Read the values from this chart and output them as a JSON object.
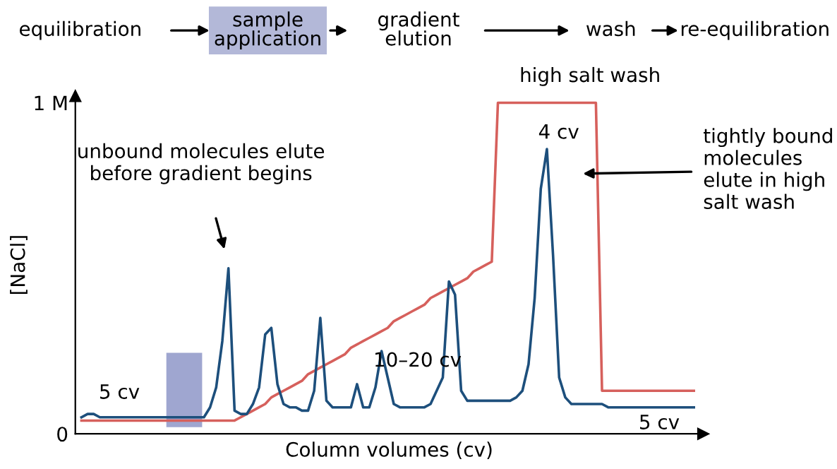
{
  "chart_data": {
    "type": "line",
    "xlabel": "Column volumes (cv)",
    "ylabel": "[NaCl]",
    "categories": [
      null,
      null,
      null,
      null,
      null,
      null,
      null,
      null,
      null,
      null,
      null,
      null,
      null,
      null,
      null,
      null,
      null,
      null,
      null,
      null,
      null,
      null,
      null,
      null,
      null,
      null,
      null,
      null,
      null,
      null,
      null,
      null,
      null,
      null,
      null,
      null,
      null,
      null,
      null,
      null,
      null,
      null,
      null,
      null,
      null,
      null,
      null,
      null,
      null,
      null,
      null,
      null,
      null,
      null,
      null,
      null,
      null,
      null,
      null,
      null,
      null,
      null,
      null,
      null,
      null,
      null,
      null,
      null,
      null,
      null,
      null,
      null,
      null,
      null,
      null,
      null,
      null,
      null,
      null,
      null,
      null,
      null,
      null,
      null,
      null,
      null,
      null,
      null,
      null,
      null,
      null,
      null,
      null,
      null,
      null,
      null,
      null,
      null,
      null,
      null,
      null
    ],
    "ylim": [
      0,
      1.02
    ],
    "yticks": [
      {
        "value": 0,
        "label": "0"
      },
      {
        "value": 1,
        "label": "1 M"
      }
    ],
    "tick_labels": "y",
    "grid": false,
    "legend": false,
    "marker": "none",
    "line_style": "solid",
    "series": [
      {
        "color": "#d6605c",
        "values": [
          0.04,
          0.04,
          0.04,
          0.04,
          0.04,
          0.04,
          0.04,
          0.04,
          0.04,
          0.04,
          0.04,
          0.04,
          0.04,
          0.04,
          0.04,
          0.04,
          0.04,
          0.04,
          0.04,
          0.04,
          0.04,
          0.04,
          0.04,
          0.04,
          0.04,
          0.04,
          0.05,
          0.06,
          0.07,
          0.08,
          0.09,
          0.11,
          0.12,
          0.13,
          0.14,
          0.15,
          0.16,
          0.18,
          0.19,
          0.2,
          0.21,
          0.22,
          0.23,
          0.24,
          0.26,
          0.27,
          0.28,
          0.29,
          0.3,
          0.31,
          0.32,
          0.34,
          0.35,
          0.36,
          0.37,
          0.38,
          0.39,
          0.41,
          0.42,
          0.43,
          0.44,
          0.45,
          0.46,
          0.47,
          0.49,
          0.5,
          0.51,
          0.52,
          1.0,
          1.0,
          1.0,
          1.0,
          1.0,
          1.0,
          1.0,
          1.0,
          1.0,
          1.0,
          1.0,
          1.0,
          1.0,
          1.0,
          1.0,
          1.0,
          1.0,
          0.13,
          0.13,
          0.13,
          0.13,
          0.13,
          0.13,
          0.13,
          0.13,
          0.13,
          0.13,
          0.13,
          0.13,
          0.13,
          0.13,
          0.13,
          0.13
        ]
      },
      {
        "color": "#1d4f7c",
        "values": [
          0.05,
          0.06,
          0.06,
          0.05,
          0.05,
          0.05,
          0.05,
          0.05,
          0.05,
          0.05,
          0.05,
          0.05,
          0.05,
          0.05,
          0.05,
          0.05,
          0.05,
          0.05,
          0.05,
          0.05,
          0.05,
          0.08,
          0.14,
          0.28,
          0.5,
          0.07,
          0.06,
          0.06,
          0.09,
          0.14,
          0.3,
          0.32,
          0.15,
          0.09,
          0.08,
          0.08,
          0.07,
          0.07,
          0.13,
          0.35,
          0.1,
          0.08,
          0.08,
          0.08,
          0.08,
          0.15,
          0.08,
          0.08,
          0.14,
          0.25,
          0.17,
          0.09,
          0.08,
          0.08,
          0.08,
          0.08,
          0.08,
          0.09,
          0.13,
          0.17,
          0.46,
          0.42,
          0.13,
          0.1,
          0.1,
          0.1,
          0.1,
          0.1,
          0.1,
          0.1,
          0.1,
          0.11,
          0.13,
          0.21,
          0.41,
          0.74,
          0.86,
          0.54,
          0.17,
          0.11,
          0.09,
          0.09,
          0.09,
          0.09,
          0.09,
          0.09,
          0.08,
          0.08,
          0.08,
          0.08,
          0.08,
          0.08,
          0.08,
          0.08,
          0.08,
          0.08,
          0.08,
          0.08,
          0.08,
          0.08,
          0.08
        ]
      }
    ],
    "annotations": [
      "equilibration",
      "sample application",
      "gradient elution",
      "wash",
      "re-equilibration",
      "5 cv",
      "10–20 cv",
      "4 cv",
      "5 cv",
      "high salt wash",
      "unbound molecules elute\nbefore gradient begins",
      "tightly bound\nmolecules\nelute in high\nsalt wash"
    ]
  }
}
